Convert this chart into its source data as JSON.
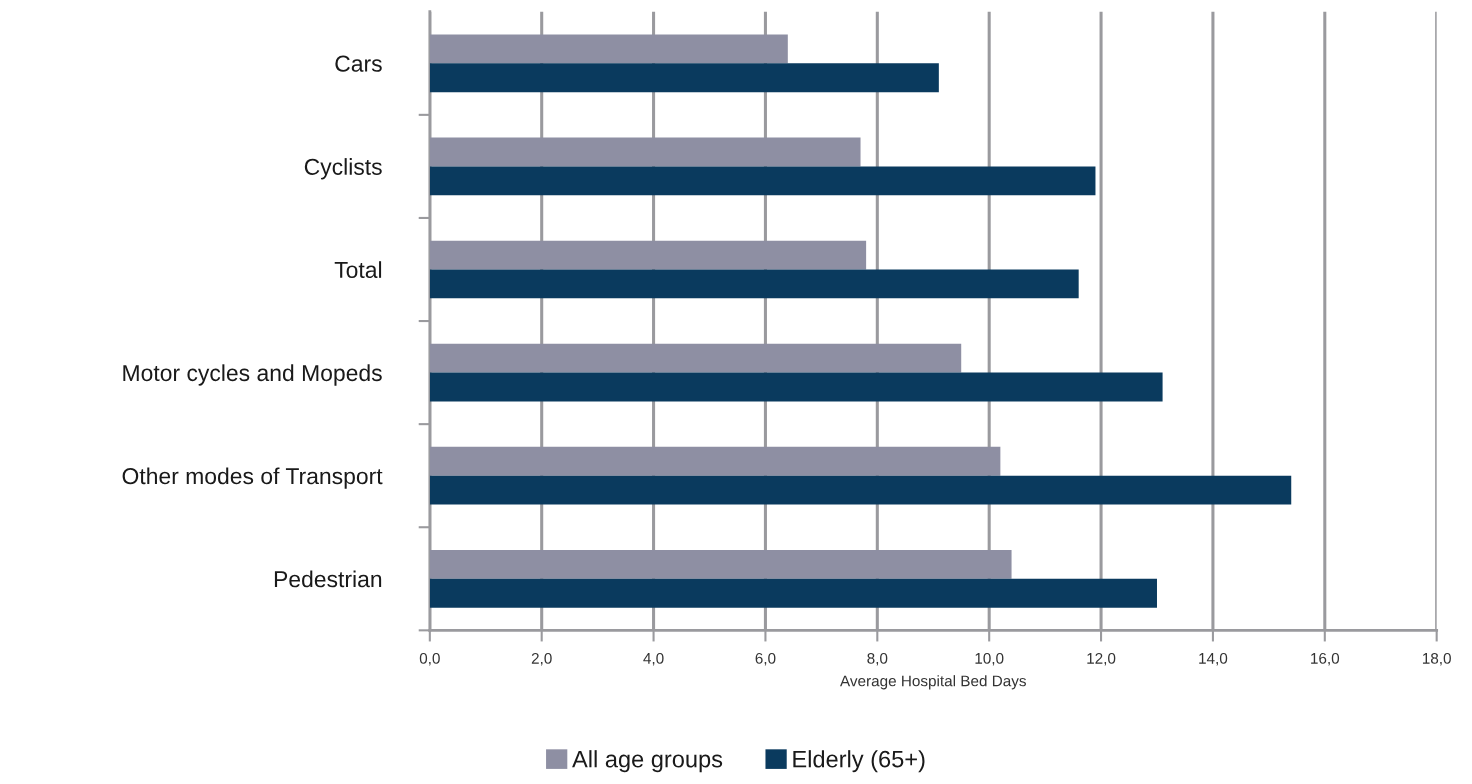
{
  "chart_data": {
    "type": "bar",
    "orientation": "horizontal",
    "categories": [
      "Cars",
      "Cyclists",
      "Total",
      "Motor cycles and Mopeds",
      "Other modes of Transport",
      "Pedestrian"
    ],
    "series": [
      {
        "name": "All age groups",
        "color": "#8e8fa3",
        "values": [
          6.4,
          7.7,
          7.8,
          9.5,
          10.2,
          10.4
        ]
      },
      {
        "name": "Elderly (65+)",
        "color": "#0a3a5e",
        "values": [
          9.1,
          11.9,
          11.6,
          13.1,
          15.4,
          13.0
        ]
      }
    ],
    "xlabel": "Average Hospital Bed Days",
    "xlim": [
      0,
      18
    ],
    "xticks": [
      {
        "value": 0,
        "label": "0,0"
      },
      {
        "value": 2,
        "label": "2,0"
      },
      {
        "value": 4,
        "label": "4,0"
      },
      {
        "value": 6,
        "label": "6,0"
      },
      {
        "value": 8,
        "label": "8,0"
      },
      {
        "value": 10,
        "label": "10,0"
      },
      {
        "value": 12,
        "label": "12,0"
      },
      {
        "value": 14,
        "label": "14,0"
      },
      {
        "value": 16,
        "label": "16,0"
      },
      {
        "value": 18,
        "label": "18,0"
      }
    ],
    "grid": "x",
    "legend": "bottom"
  }
}
